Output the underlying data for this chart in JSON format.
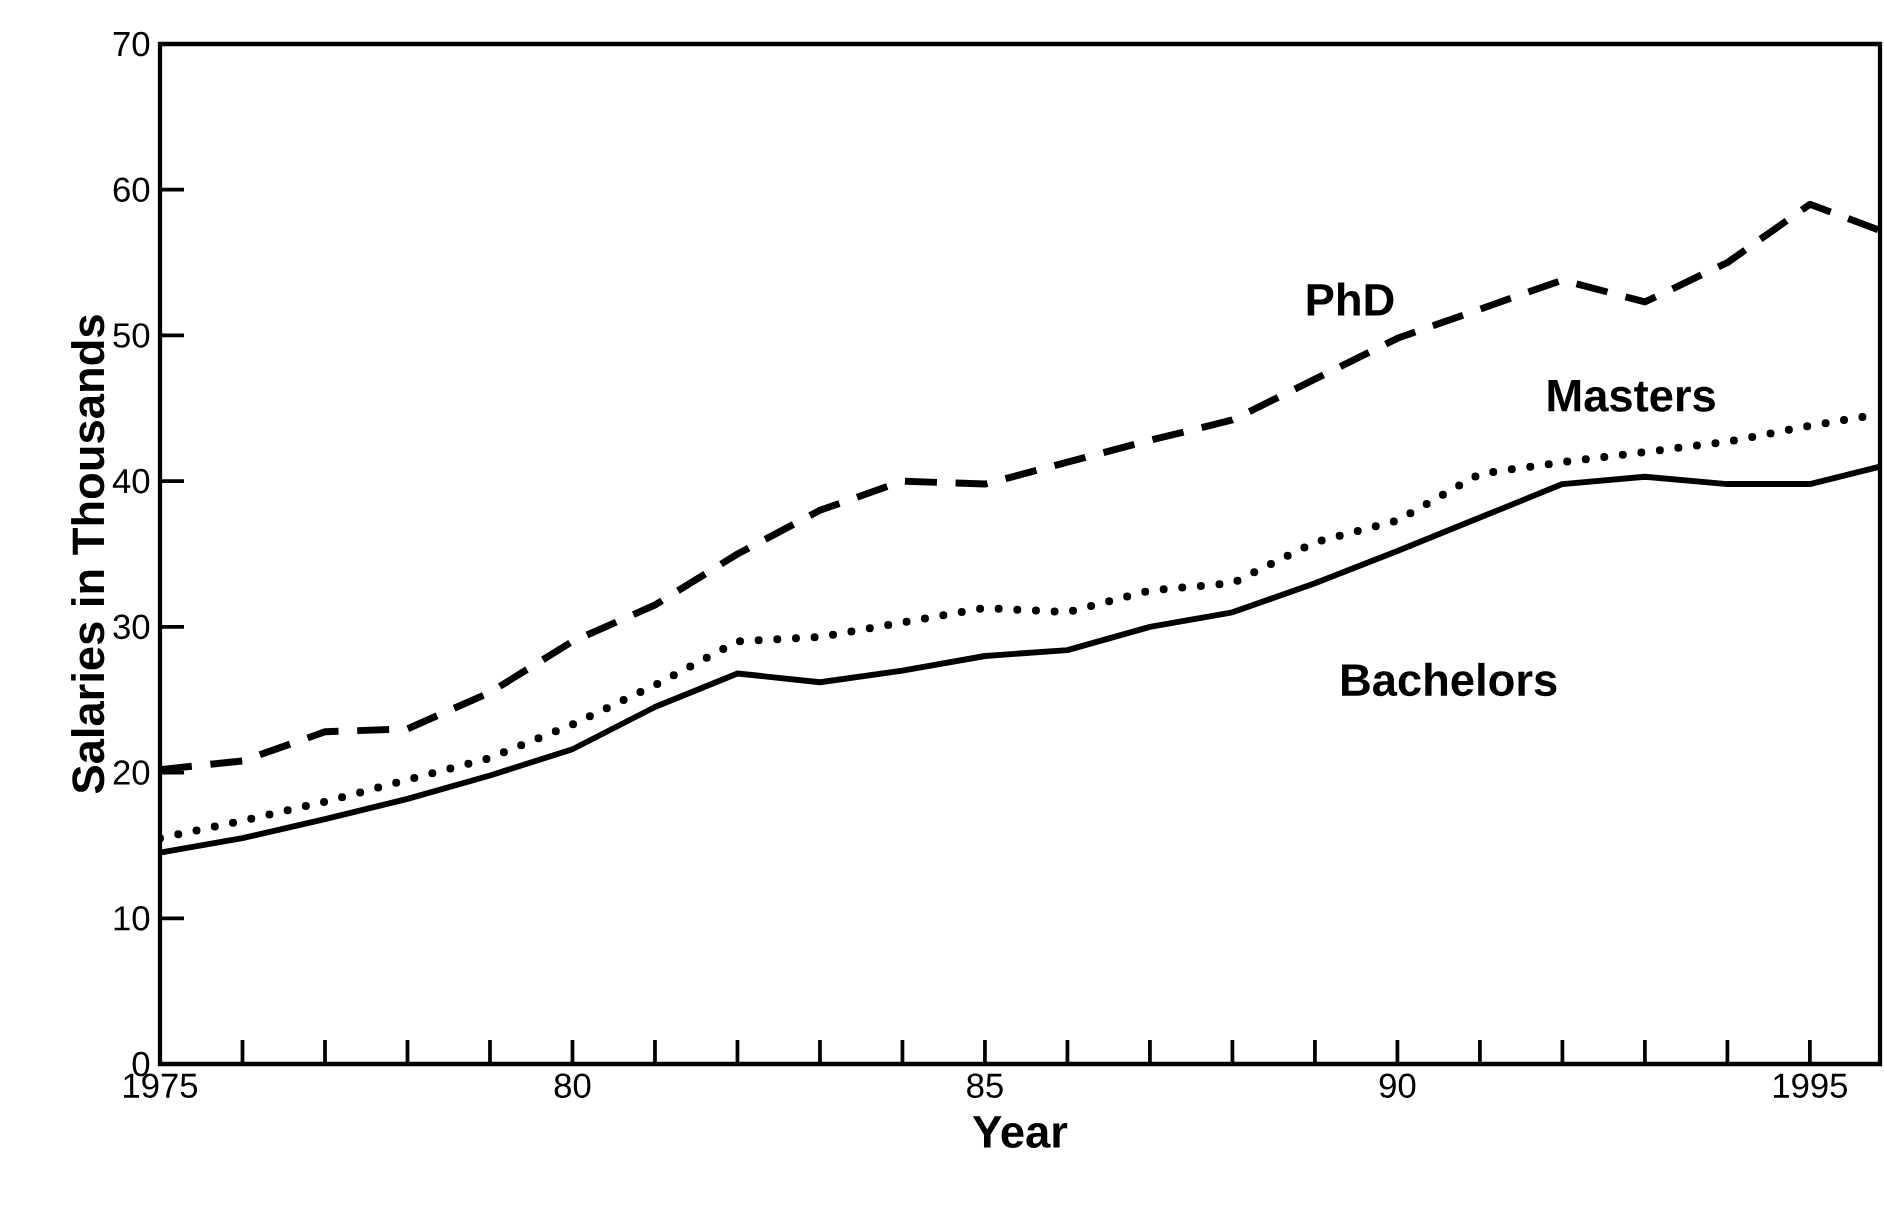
{
  "chart_data": {
    "type": "line",
    "xlabel": "Year",
    "ylabel": "Salaries in Thousands",
    "x": [
      1975,
      1976,
      1977,
      1978,
      1979,
      1980,
      1981,
      1982,
      1983,
      1984,
      1985,
      1986,
      1987,
      1988,
      1989,
      1990,
      1991,
      1992,
      1993,
      1994,
      1995,
      1995.85
    ],
    "series": [
      {
        "name": "PhD",
        "color": "#000000",
        "line_style": "dashed",
        "values": [
          20.2,
          20.8,
          22.8,
          23.0,
          25.5,
          29.0,
          31.5,
          35.0,
          38.0,
          40.0,
          39.8,
          41.3,
          42.8,
          44.2,
          47.0,
          49.8,
          51.8,
          53.8,
          52.3,
          55.0,
          59.0,
          57.2
        ]
      },
      {
        "name": "Masters",
        "color": "#000000",
        "line_style": "dotted",
        "values": [
          15.5,
          16.7,
          18.0,
          19.5,
          21.0,
          23.3,
          26.0,
          29.0,
          29.3,
          30.3,
          31.3,
          31.0,
          32.5,
          33.0,
          35.8,
          37.3,
          40.5,
          41.3,
          42.0,
          42.7,
          43.8,
          44.6
        ]
      },
      {
        "name": "Bachelors",
        "color": "#000000",
        "line_style": "solid",
        "values": [
          14.5,
          15.5,
          16.8,
          18.2,
          19.8,
          21.6,
          24.5,
          26.8,
          26.2,
          27.0,
          28.0,
          28.4,
          30.0,
          31.0,
          33.0,
          35.2,
          37.5,
          39.8,
          40.3,
          39.8,
          39.8,
          41.0
        ]
      }
    ],
    "xlim": [
      1975,
      1995.85
    ],
    "ylim": [
      0,
      70
    ],
    "xticks": [
      1975,
      {
        "value": 1976,
        "label": null
      },
      {
        "value": 1977,
        "label": null
      },
      {
        "value": 1978,
        "label": null
      },
      {
        "value": 1979,
        "label": null
      },
      {
        "value": 1980,
        "label": "80"
      },
      {
        "value": 1981,
        "label": null
      },
      {
        "value": 1982,
        "label": null
      },
      {
        "value": 1983,
        "label": null
      },
      {
        "value": 1984,
        "label": null
      },
      {
        "value": 1985,
        "label": "85"
      },
      {
        "value": 1986,
        "label": null
      },
      {
        "value": 1987,
        "label": null
      },
      {
        "value": 1988,
        "label": null
      },
      {
        "value": 1989,
        "label": null
      },
      {
        "value": 1990,
        "label": "90"
      },
      {
        "value": 1991,
        "label": null
      },
      {
        "value": 1992,
        "label": null
      },
      {
        "value": 1993,
        "label": null
      },
      {
        "value": 1994,
        "label": null
      },
      1995
    ],
    "yticks": [
      0,
      10,
      20,
      30,
      40,
      50,
      60,
      70
    ],
    "grid": false,
    "legend": false,
    "marker": "none"
  }
}
